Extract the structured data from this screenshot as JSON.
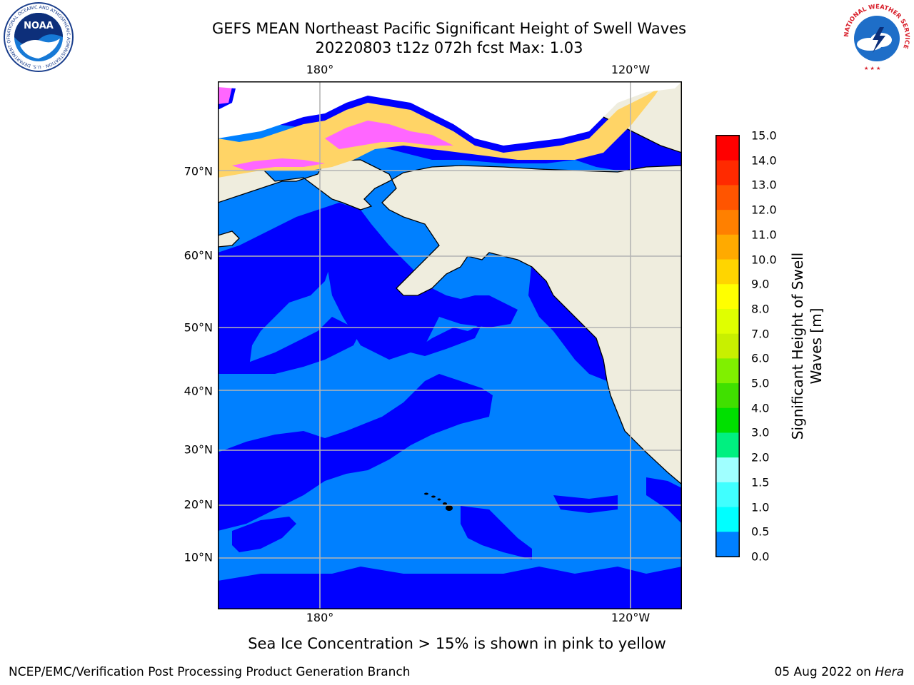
{
  "title": {
    "line1": "GEFS MEAN Northeast Pacific Significant Height of Swell Waves",
    "line2": "20220803 t12z 072h fcst   Max: 1.03"
  },
  "map": {
    "lon_labels_top": [
      "180°",
      "120°W"
    ],
    "lon_labels_bottom": [
      "180°",
      "120°W"
    ],
    "lat_labels": [
      "70°N",
      "60°N",
      "50°N",
      "40°N",
      "30°N",
      "20°N",
      "10°N"
    ],
    "colors": {
      "land": "#efedde",
      "ocean_low": "#0000ff",
      "ocean_mid": "#0080ff",
      "ice_pink": "#ff66ff",
      "ice_orange": "#ffb050",
      "ice_yellow": "#ffd466",
      "grid": "#b4b4b4"
    }
  },
  "colorbar": {
    "label": "Significant Height of Swell Waves [m]",
    "label_line1": "Significant Height of Swell",
    "label_line2": "Waves [m]",
    "ticks": [
      "15.0",
      "14.0",
      "13.0",
      "12.0",
      "11.0",
      "10.0",
      "9.0",
      "8.0",
      "7.0",
      "6.0",
      "5.0",
      "4.0",
      "3.0",
      "2.0",
      "1.5",
      "1.0",
      "0.5",
      "0.0"
    ],
    "colors": [
      "#ff0000",
      "#ff2a00",
      "#ff5500",
      "#ff8000",
      "#ffaa00",
      "#ffd500",
      "#ffff00",
      "#e0ff00",
      "#c8f000",
      "#80f000",
      "#40e000",
      "#00e000",
      "#00f080",
      "#a0ffff",
      "#40ffff",
      "#00ffff",
      "#0080ff",
      "#0000ff"
    ]
  },
  "footnote": "Sea Ice Concentration > 15% is shown in pink to yellow",
  "credits": {
    "left": "NCEP/EMC/Verification Post Processing Product Generation Branch",
    "right_date": "05 Aug 2022 on ",
    "right_host": "Hera"
  },
  "logos": {
    "noaa_text": "NOAA",
    "noaa_ring_text": "NATIONAL OCEANIC AND ATMOSPHERIC ADMINISTRATION · U.S. DEPARTMENT OF COMMERCE",
    "nws_ring_text": "NATIONAL WEATHER SERVICE"
  }
}
